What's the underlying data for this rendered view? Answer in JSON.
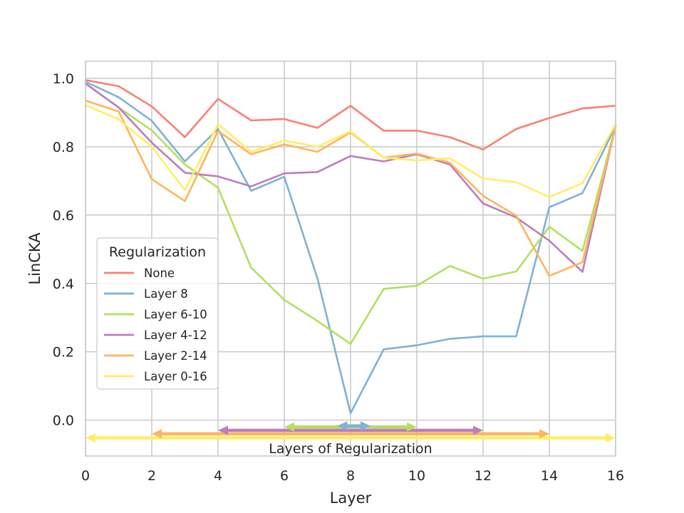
{
  "chart_data": {
    "type": "line",
    "xlabel": "Layer",
    "ylabel": "LinCKA",
    "xlim": [
      0,
      16
    ],
    "ylim": [
      -0.105,
      1.05
    ],
    "xticks": [
      "0",
      "2",
      "4",
      "6",
      "8",
      "10",
      "12",
      "14",
      "16"
    ],
    "yticks": [
      "0.0",
      "0.2",
      "0.4",
      "0.6",
      "0.8",
      "1.0"
    ],
    "grid": true,
    "legend": {
      "title": "Regularization",
      "placement": "center-left"
    },
    "x": [
      0,
      1,
      2,
      3,
      4,
      5,
      6,
      7,
      8,
      9,
      10,
      11,
      12,
      13,
      14,
      15,
      16
    ],
    "series": [
      {
        "name": "None",
        "color": "#fa8072",
        "values": [
          0.995,
          0.977,
          0.918,
          0.828,
          0.94,
          0.877,
          0.881,
          0.855,
          0.92,
          0.847,
          0.847,
          0.828,
          0.792,
          0.852,
          0.884,
          0.912,
          0.92
        ]
      },
      {
        "name": "Layer 8",
        "color": "#7eb2d6",
        "values": [
          0.99,
          0.945,
          0.876,
          0.757,
          0.852,
          0.671,
          0.712,
          0.415,
          0.02,
          0.207,
          0.219,
          0.238,
          0.245,
          0.245,
          0.623,
          0.664,
          0.86
        ]
      },
      {
        "name": "Layer 6-10",
        "color": "#b2e061",
        "values": [
          0.985,
          0.915,
          0.848,
          0.748,
          0.68,
          0.446,
          0.352,
          0.29,
          0.223,
          0.384,
          0.393,
          0.451,
          0.414,
          0.435,
          0.566,
          0.495,
          0.86
        ]
      },
      {
        "name": "Layer 4-12",
        "color": "#bd7ebe",
        "values": [
          0.985,
          0.915,
          0.812,
          0.724,
          0.713,
          0.684,
          0.722,
          0.726,
          0.773,
          0.757,
          0.778,
          0.748,
          0.634,
          0.593,
          0.525,
          0.434,
          0.862
        ]
      },
      {
        "name": "Layer 2-14",
        "color": "#ffb55a",
        "values": [
          0.935,
          0.903,
          0.705,
          0.641,
          0.846,
          0.778,
          0.807,
          0.785,
          0.842,
          0.768,
          0.78,
          0.753,
          0.656,
          0.598,
          0.422,
          0.462,
          0.862
        ]
      },
      {
        "name": "Layer 0-16",
        "color": "#ffee65",
        "values": [
          0.922,
          0.88,
          0.8,
          0.673,
          0.866,
          0.785,
          0.818,
          0.8,
          0.845,
          0.768,
          0.76,
          0.766,
          0.707,
          0.696,
          0.653,
          0.693,
          0.866
        ]
      }
    ],
    "regularization_ranges": [
      {
        "name": "Layer 8",
        "color": "#7eb2d6",
        "from": 7.6,
        "to": 8.6,
        "y": -0.017
      },
      {
        "name": "Layer 6-10",
        "color": "#b2e061",
        "from": 6,
        "to": 10,
        "y": -0.02
      },
      {
        "name": "Layer 4-12",
        "color": "#bd7ebe",
        "from": 4,
        "to": 12,
        "y": -0.03
      },
      {
        "name": "Layer 2-14",
        "color": "#ffb55a",
        "from": 2,
        "to": 14,
        "y": -0.04
      },
      {
        "name": "Layer 0-16",
        "color": "#ffee65",
        "from": 0,
        "to": 16,
        "y": -0.052
      }
    ],
    "annotation": {
      "text": "Layers of Regularization",
      "x": 8,
      "y": -0.082
    }
  }
}
